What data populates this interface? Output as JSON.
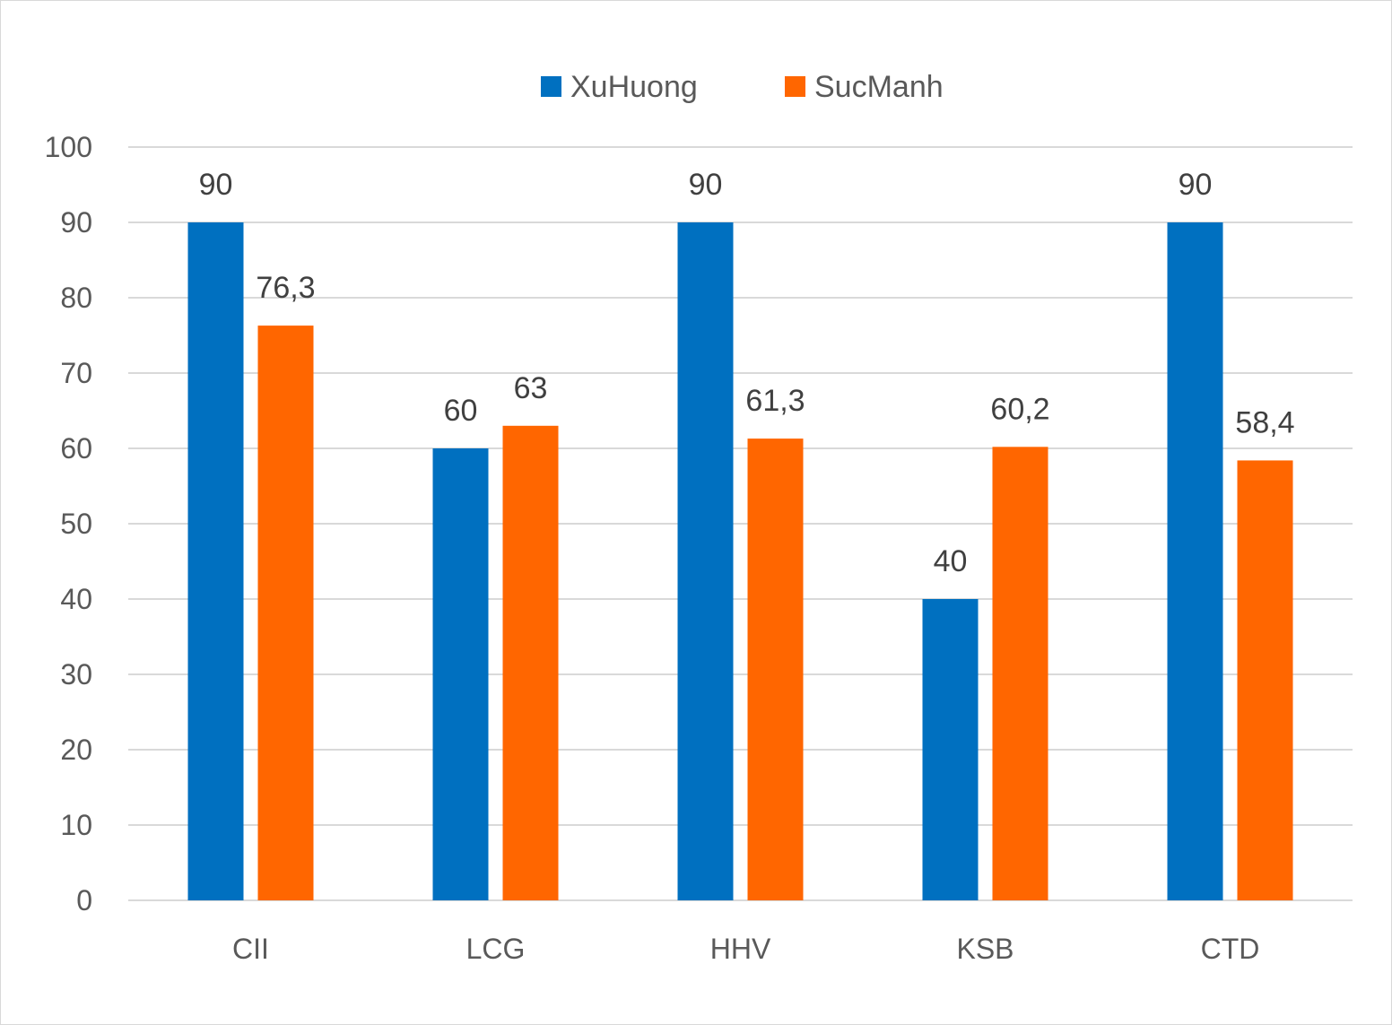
{
  "chart_data": {
    "type": "bar",
    "categories": [
      "CII",
      "LCG",
      "HHV",
      "KSB",
      "CTD"
    ],
    "series": [
      {
        "name": "XuHuong",
        "values": [
          90,
          60,
          90,
          40,
          90
        ],
        "labels": [
          "90",
          "60",
          "90",
          "40",
          "90"
        ],
        "color": "#0070C0"
      },
      {
        "name": "SucManh",
        "values": [
          76.3,
          63,
          61.3,
          60.2,
          58.4
        ],
        "labels": [
          "76,3",
          "63",
          "61,3",
          "60,2",
          "58,4"
        ],
        "color": "#FF6600"
      }
    ],
    "title": "",
    "xlabel": "",
    "ylabel": "",
    "ylim": [
      0,
      100
    ],
    "yticks": [
      "0",
      "10",
      "20",
      "30",
      "40",
      "50",
      "60",
      "70",
      "80",
      "90",
      "100"
    ],
    "grid": true,
    "legend_position": "top-center"
  }
}
